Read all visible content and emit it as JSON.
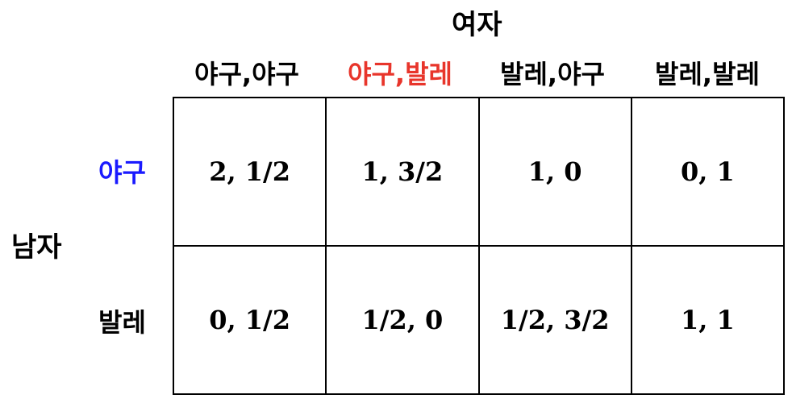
{
  "players": {
    "column": "여자",
    "row": "남자"
  },
  "column_strategies": [
    {
      "label": "야구,야구",
      "color": "#000000"
    },
    {
      "label": "야구,발레",
      "color": "#e8352b"
    },
    {
      "label": "발레,야구",
      "color": "#000000"
    },
    {
      "label": "발레,발레",
      "color": "#000000"
    }
  ],
  "row_strategies": [
    {
      "label": "야구",
      "color": "#1a1aff"
    },
    {
      "label": "발레",
      "color": "#000000"
    }
  ],
  "payoffs": [
    [
      "2, 1/2",
      "1, 3/2",
      "1, 0",
      "0, 1"
    ],
    [
      "0, 1/2",
      "1/2, 0",
      "1/2, 3/2",
      "1, 1"
    ]
  ]
}
